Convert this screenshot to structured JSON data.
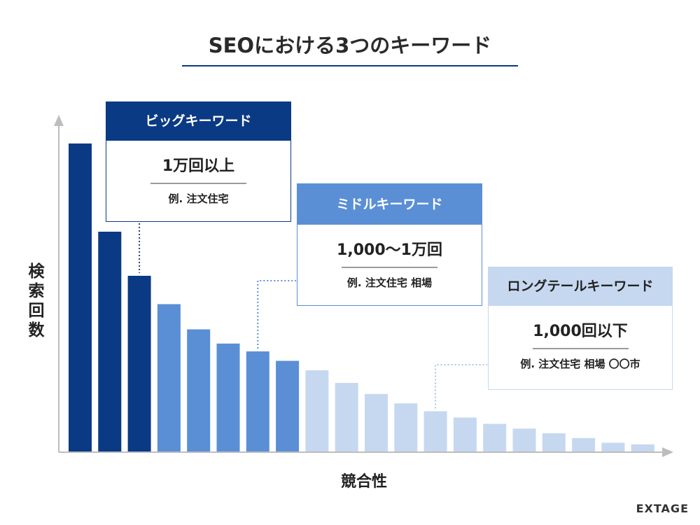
{
  "title": "SEOにおける3つのキーワード",
  "chart_data": {
    "type": "bar",
    "ylabel": "検索回数",
    "xlabel": "競合性",
    "values": [
      98,
      70,
      56,
      47,
      39,
      34.5,
      32,
      29,
      26,
      22,
      18.5,
      15.5,
      13,
      11,
      9,
      7.5,
      6,
      4.5,
      3,
      2.5
    ],
    "group": [
      "big",
      "big",
      "big",
      "middle",
      "middle",
      "middle",
      "middle",
      "middle",
      "long",
      "long",
      "long",
      "long",
      "long",
      "long",
      "long",
      "long",
      "long",
      "long",
      "long",
      "long"
    ],
    "ylim": [
      0,
      100
    ],
    "colors": {
      "big": "#0b3a84",
      "middle": "#5a8fd6",
      "long": "#c6d8f0",
      "axis": "#bdbdbd",
      "leader": "#2a5aa0"
    }
  },
  "callouts": {
    "big": {
      "label": "ビッグキーワード",
      "count": "1万回以上",
      "example": "例. 注文住宅"
    },
    "middle": {
      "label": "ミドルキーワード",
      "count": "1,000〜1万回",
      "example": "例. 注文住宅 相場"
    },
    "long": {
      "label": "ロングテールキーワード",
      "count": "1,000回以下",
      "example": "例. 注文住宅 相場 〇〇市"
    }
  },
  "logo": "EXTAGE"
}
